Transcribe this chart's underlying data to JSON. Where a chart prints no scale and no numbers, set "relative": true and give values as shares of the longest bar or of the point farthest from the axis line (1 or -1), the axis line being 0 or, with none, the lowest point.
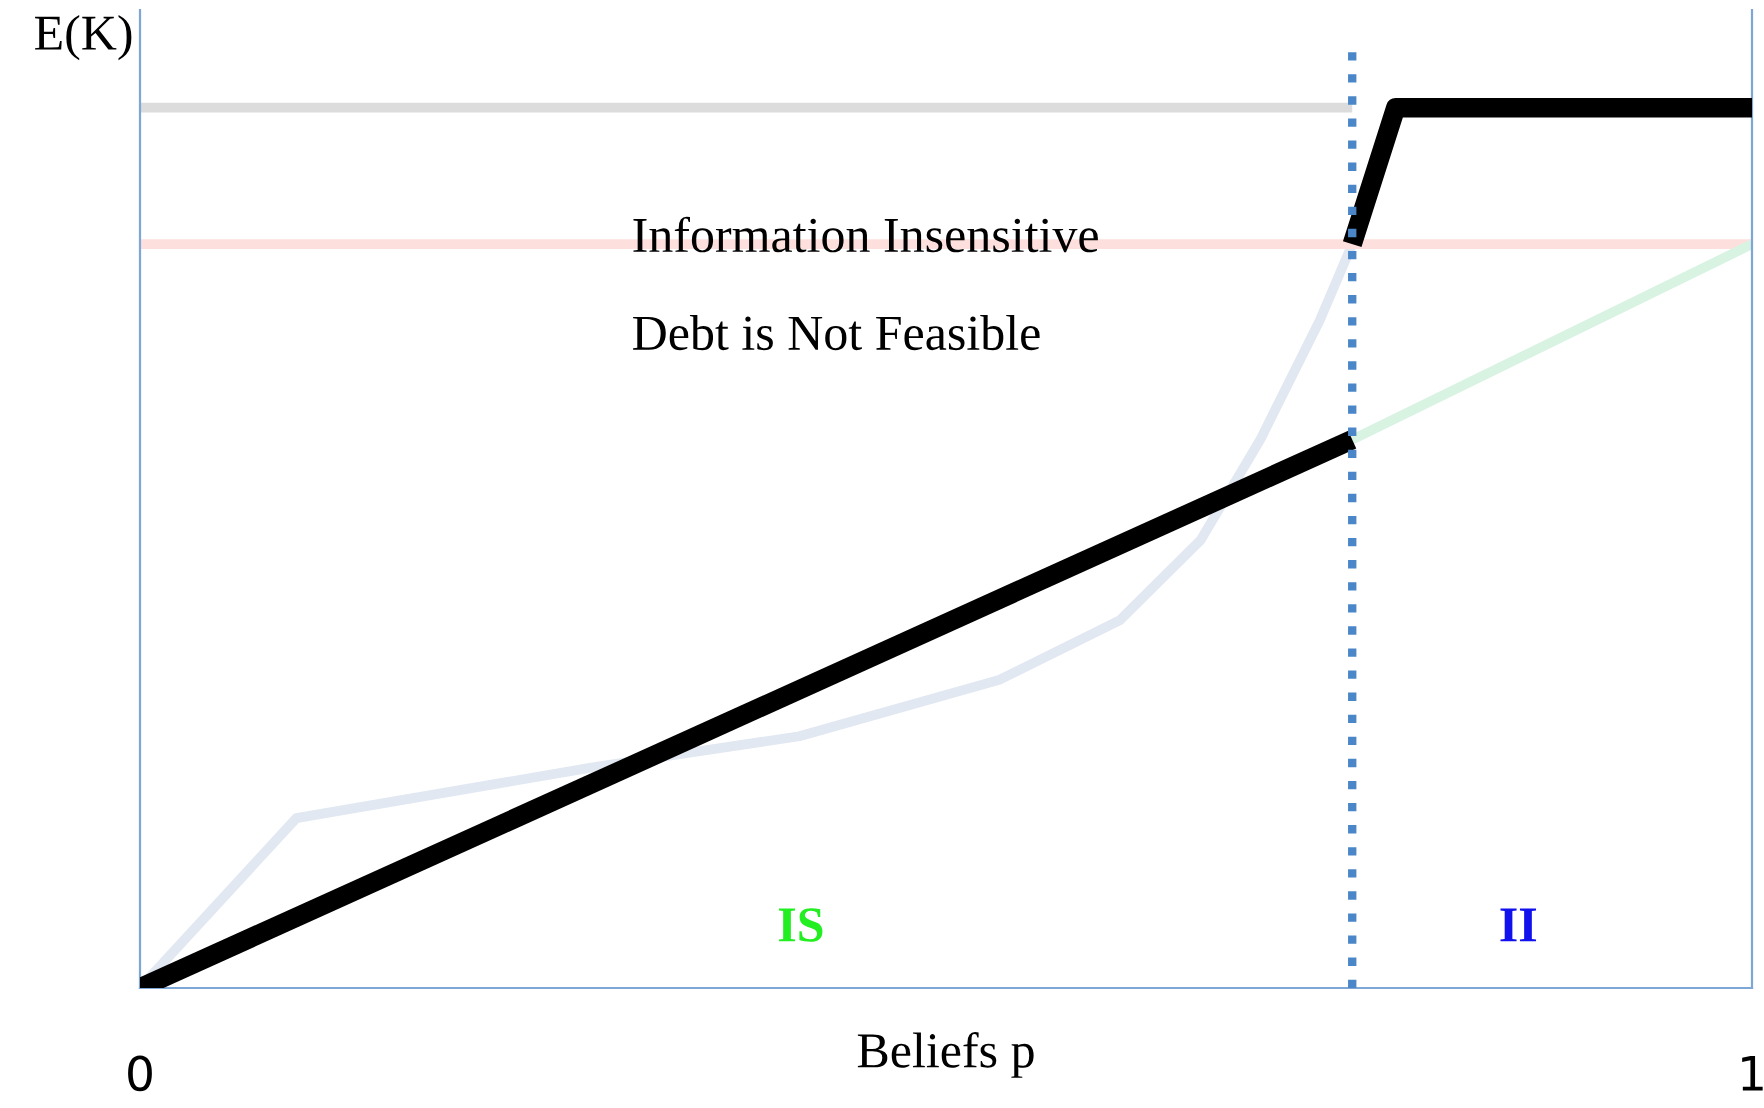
{
  "chart_data": {
    "type": "line",
    "relative": true,
    "xlabel": "Beliefs p",
    "ylabel": "E(K)",
    "xlim": [
      0,
      1
    ],
    "xticks": [
      0,
      1
    ],
    "tick_labels": "x",
    "series": [
      {
        "color": "#e1e8f2",
        "x": [
          0,
          0.097,
          0.285,
          0.409,
          0.533,
          0.608,
          0.658,
          0.695,
          0.732,
          0.752
        ],
        "values": [
          0,
          0.193,
          0.252,
          0.286,
          0.35,
          0.418,
          0.509,
          0.623,
          0.759,
          0.845
        ]
      },
      {
        "color": "#fde0dd",
        "x": [
          0,
          1
        ],
        "values": [
          0.845,
          0.845
        ]
      },
      {
        "color": "#dcdcdc",
        "x": [
          0,
          0.752
        ],
        "values": [
          1.0,
          1.0
        ]
      },
      {
        "color": "#d8f3e2",
        "x": [
          0.752,
          1
        ],
        "values": [
          0.623,
          0.845
        ]
      },
      {
        "color": "#000000",
        "x": [
          0,
          0.752
        ],
        "values": [
          0,
          0.623
        ]
      },
      {
        "color": "#000000",
        "x": [
          0.752,
          0.779,
          1
        ],
        "values": [
          0.845,
          1.0,
          1.0
        ]
      }
    ],
    "ref_lines": [
      {
        "axis": "x",
        "value": 0.752,
        "color": "#4a86c8",
        "line_style": "dotted"
      }
    ],
    "annotations": [
      "Information Insensitive",
      "Debt is Not Feasible",
      "IS",
      "II"
    ]
  }
}
